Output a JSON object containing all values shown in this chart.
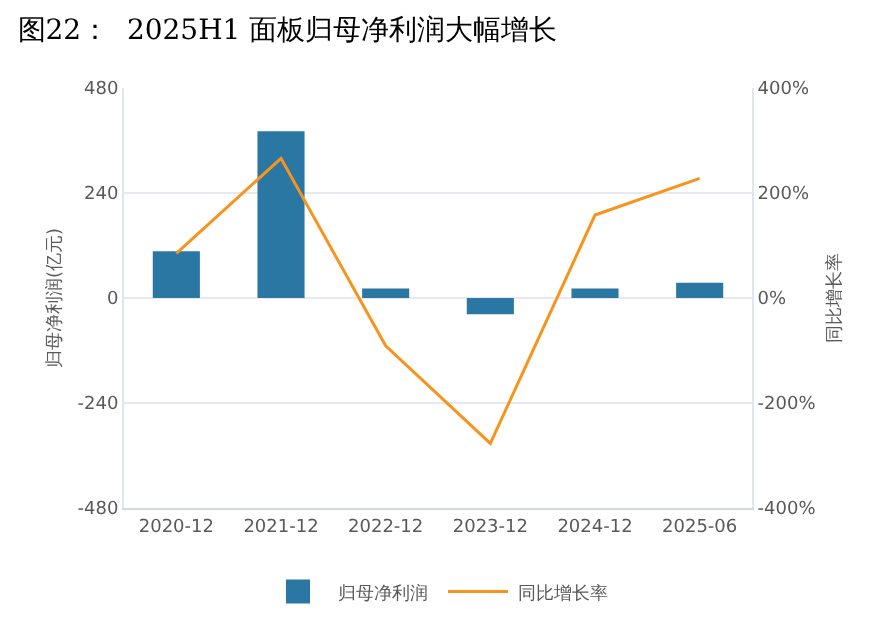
{
  "chart_data": {
    "type": "bar",
    "title": "图22：  2025H1 面板归母净利润大幅增长",
    "categories": [
      "2020-12",
      "2021-12",
      "2022-12",
      "2023-12",
      "2024-12",
      "2025-06"
    ],
    "series": [
      {
        "name": "归母净利润",
        "color": "#2a77a3",
        "values": [
          107,
          381,
          22,
          -37,
          22,
          35
        ]
      },
      {
        "name": "同比增长率",
        "type": "line",
        "axis": "y2",
        "color": "#f7941d",
        "marker": "none",
        "values": [
          85,
          266,
          -91,
          -277,
          158,
          228
        ]
      }
    ],
    "ylabel": "归母净利润(亿元)",
    "y2label": "同比增长率",
    "ylim": [
      -480,
      480
    ],
    "yticks": [
      -480,
      -240,
      0,
      240,
      480
    ],
    "y2lim": [
      -400,
      400
    ],
    "y2ticks": [
      {
        "value": -400,
        "label": "-400%"
      },
      {
        "value": -200,
        "label": "-200%"
      },
      {
        "value": 0,
        "label": "0%"
      },
      {
        "value": 200,
        "label": "200%"
      },
      {
        "value": 400,
        "label": "400%"
      }
    ],
    "grid": "y",
    "legend": "bottom"
  }
}
